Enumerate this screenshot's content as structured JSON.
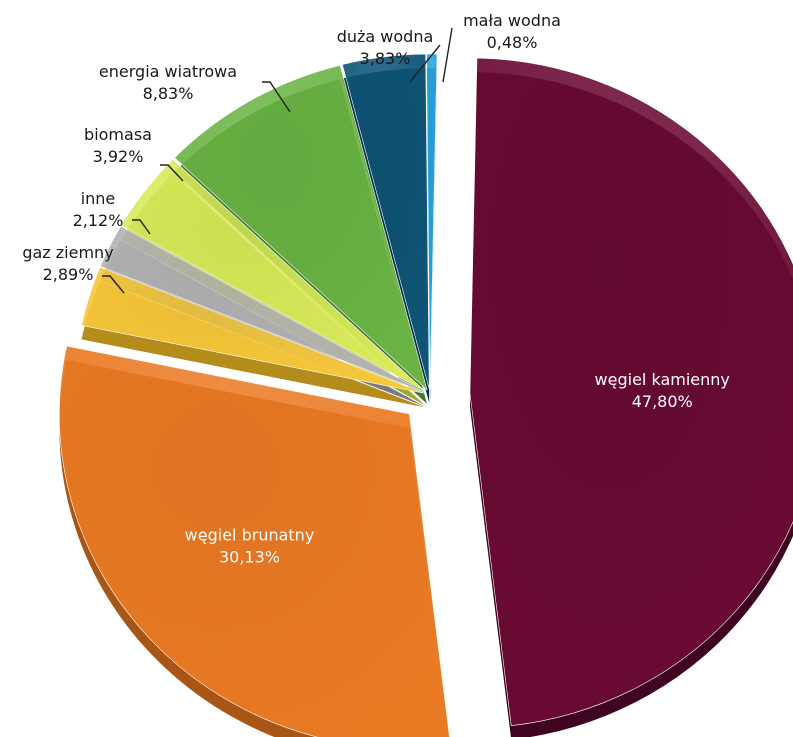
{
  "chart_data": {
    "type": "pie",
    "title": "",
    "slices": [
      {
        "label": "węgiel kamienny",
        "value": 47.8,
        "value_text": "47,80%",
        "color": "#6a0a33",
        "side_color": "#3f0520",
        "explode": true,
        "label_inside": true
      },
      {
        "label": "węgiel brunatny",
        "value": 30.13,
        "value_text": "30,13%",
        "color": "#ea7a24",
        "side_color": "#a85515",
        "explode": true,
        "label_inside": true
      },
      {
        "label": "gaz ziemny",
        "value": 2.89,
        "value_text": "2,89%",
        "color": "#f7c83a",
        "side_color": "#b48c1c",
        "explode": false,
        "label_inside": false
      },
      {
        "label": "inne",
        "value": 2.12,
        "value_text": "2,12%",
        "color": "#b3b3b3",
        "side_color": "#7a7a7a",
        "explode": false,
        "label_inside": false
      },
      {
        "label": "biomasa",
        "value": 3.92,
        "value_text": "3,92%",
        "color": "#d9ea5a",
        "side_color": "#9aa92f",
        "explode": false,
        "label_inside": false
      },
      {
        "label": "energia wiatrowa",
        "value": 8.83,
        "value_text": "8,83%",
        "color": "#6ab344",
        "side_color": "#447a2a",
        "explode": false,
        "label_inside": false
      },
      {
        "label": "duża wodna",
        "value": 3.83,
        "value_text": "3,83%",
        "color": "#0e5577",
        "side_color": "#08344a",
        "explode": false,
        "label_inside": false
      },
      {
        "label": "mała wodna",
        "value": 0.48,
        "value_text": "0,48%",
        "color": "#2aa3de",
        "side_color": "#16709c",
        "explode": false,
        "label_inside": false
      }
    ],
    "legend": "none",
    "style": "3d-exploded"
  }
}
